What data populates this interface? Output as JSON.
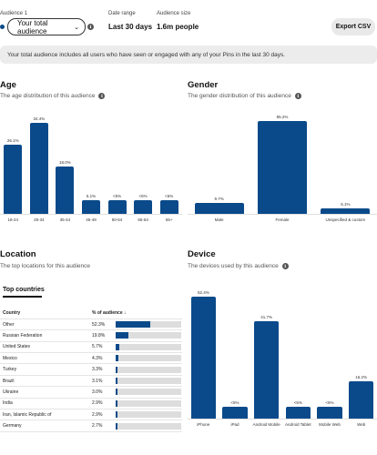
{
  "header": {
    "audience_label": "Audience 1",
    "audience_value": "Your total audience",
    "date_range_label": "Date range",
    "date_range_value": "Last 30 days",
    "audience_size_label": "Audience size",
    "audience_size_value": "1.6m people",
    "export_label": "Export CSV"
  },
  "banner": "Your total audience includes all users who have seen or engaged with any of your Pins in the last 30 days.",
  "age": {
    "title": "Age",
    "subtitle": "The age distribution of this audience",
    "chart_data": {
      "type": "bar",
      "categories": [
        "18-24",
        "25-34",
        "35-44",
        "45-49",
        "50-54",
        "55-64",
        "65+"
      ],
      "values": [
        26.1,
        34.4,
        18.0,
        5.1,
        5,
        5,
        5
      ],
      "value_labels": [
        "26.1%",
        "34.4%",
        "18.0%",
        "5.1%",
        "<5%",
        "<5%",
        "<5%"
      ]
    }
  },
  "gender": {
    "title": "Gender",
    "subtitle": "The gender distribution of this audience",
    "chart_data": {
      "type": "bar",
      "categories": [
        "Male",
        "Female",
        "Unspecified & custom"
      ],
      "values": [
        9.7,
        85.2,
        5.1
      ],
      "value_labels": [
        "9.7%",
        "85.2%",
        "5.1%"
      ]
    }
  },
  "location": {
    "title": "Location",
    "subtitle": "The top locations for this audience",
    "tab_label": "Top countries",
    "col_country": "Country",
    "col_pct": "% of audience",
    "sort_icon": "arrow-down-icon",
    "rows": [
      {
        "country": "Other",
        "pct_label": "52.3%",
        "pct": 52.3
      },
      {
        "country": "Russian Federation",
        "pct_label": "19.8%",
        "pct": 19.8
      },
      {
        "country": "United States",
        "pct_label": "5.7%",
        "pct": 5.7
      },
      {
        "country": "Mexico",
        "pct_label": "4.3%",
        "pct": 4.3
      },
      {
        "country": "Turkey",
        "pct_label": "3.3%",
        "pct": 3.3
      },
      {
        "country": "Brazil",
        "pct_label": "3.1%",
        "pct": 3.1
      },
      {
        "country": "Ukraine",
        "pct_label": "3.0%",
        "pct": 3.0
      },
      {
        "country": "India",
        "pct_label": "2.9%",
        "pct": 2.9
      },
      {
        "country": "Iran, Islamic Republic of",
        "pct_label": "2.9%",
        "pct": 2.9
      },
      {
        "country": "Germany",
        "pct_label": "2.7%",
        "pct": 2.7
      }
    ]
  },
  "device": {
    "title": "Device",
    "subtitle": "The devices used by this audience",
    "chart_data": {
      "type": "bar",
      "categories": [
        "iPhone",
        "iPad",
        "Android Mobile",
        "Android Tablet",
        "Mobile Web",
        "Web"
      ],
      "values": [
        52.4,
        5,
        41.7,
        5,
        5,
        16.2
      ],
      "value_labels": [
        "52.4%",
        "<5%",
        "41.7%",
        "<5%",
        "<5%",
        "16.2%"
      ]
    }
  },
  "colors": {
    "bar": "#0a4a8a",
    "banner_bg": "#ececec",
    "track": "#dddddd"
  }
}
